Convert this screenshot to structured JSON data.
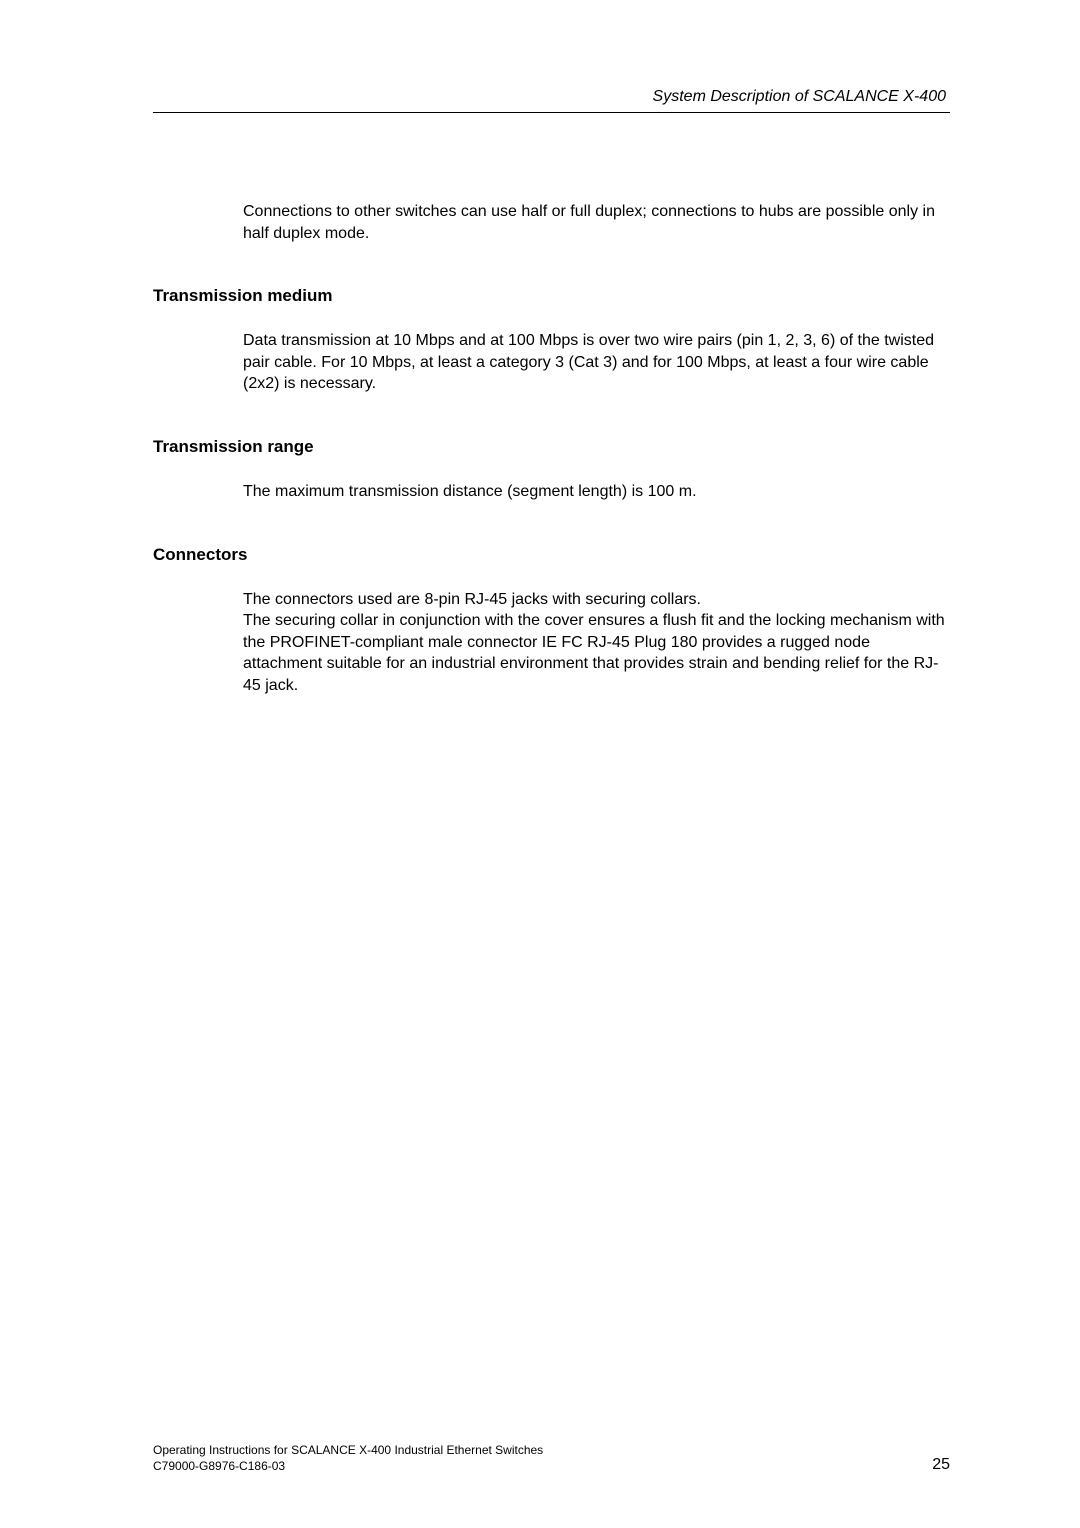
{
  "header": {
    "running_title": "System Description of SCALANCE X-400"
  },
  "intro": {
    "paragraph": "Connections to other switches can use half or full duplex; connections to hubs are possible only in half duplex mode."
  },
  "sections": [
    {
      "heading": "Transmission medium",
      "paragraph": "Data transmission at 10 Mbps and at 100 Mbps is over two wire pairs (pin 1, 2, 3, 6) of the twisted pair cable. For 10 Mbps, at least a category 3 (Cat 3) and for 100 Mbps, at least a four wire cable (2x2) is necessary."
    },
    {
      "heading": "Transmission range",
      "paragraph": "The maximum transmission distance (segment length) is 100 m."
    },
    {
      "heading": "Connectors",
      "paragraph": "The connectors used are 8-pin RJ-45 jacks with securing collars.\nThe securing collar in conjunction with the cover ensures a flush fit and the locking mechanism with the PROFINET-compliant male connector IE FC RJ-45 Plug 180 provides a rugged node attachment suitable for an industrial environment that provides strain and bending relief for the RJ-45 jack."
    }
  ],
  "footer": {
    "line1": "Operating Instructions for SCALANCE X-400 Industrial Ethernet Switches",
    "line2": "C79000-G8976-C186-03",
    "page_number": "25"
  }
}
